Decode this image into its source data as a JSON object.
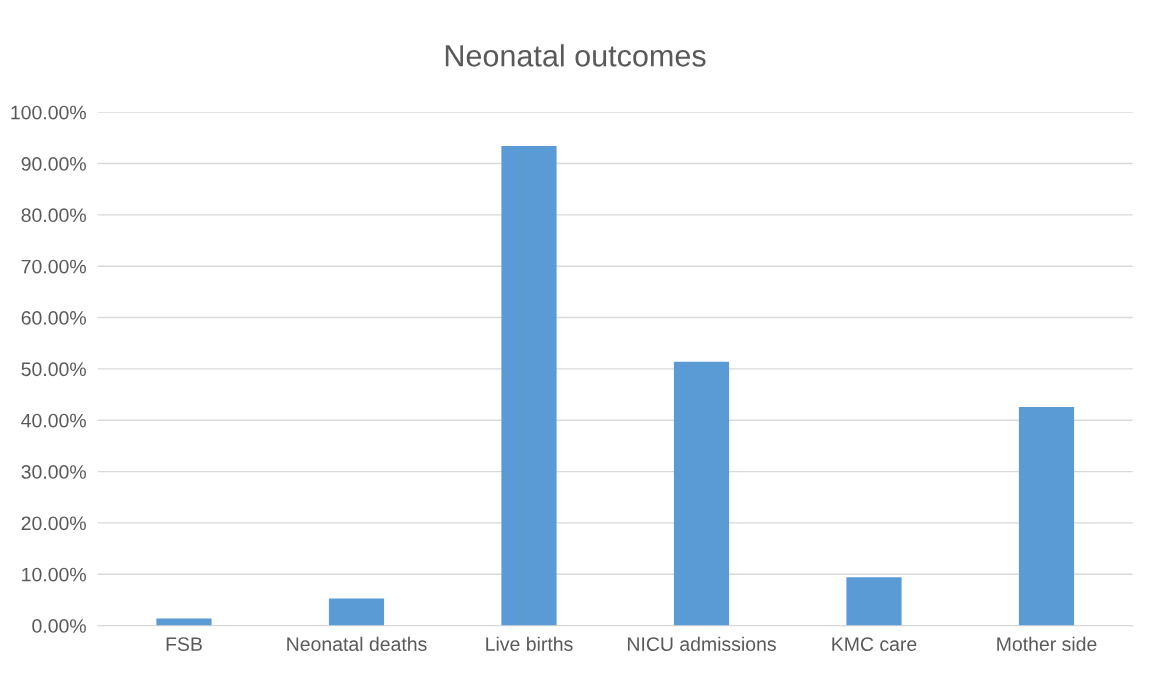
{
  "chart_data": {
    "type": "bar",
    "title": "Neonatal outcomes",
    "categories": [
      "FSB",
      "Neonatal deaths",
      "Live births",
      "NICU admissions",
      "KMC care",
      "Mother side"
    ],
    "values": [
      1.4,
      5.3,
      93.4,
      51.4,
      9.4,
      42.6
    ],
    "color": "#5b9bd5",
    "ylim": [
      0,
      100
    ],
    "yticks": [
      {
        "value": 0,
        "label": "0.00%"
      },
      {
        "value": 10,
        "label": "10.00%"
      },
      {
        "value": 20,
        "label": "20.00%"
      },
      {
        "value": 30,
        "label": "30.00%"
      },
      {
        "value": 40,
        "label": "40.00%"
      },
      {
        "value": 50,
        "label": "50.00%"
      },
      {
        "value": 60,
        "label": "60.00%"
      },
      {
        "value": 70,
        "label": "70.00%"
      },
      {
        "value": 80,
        "label": "80.00%"
      },
      {
        "value": 90,
        "label": "90.00%"
      },
      {
        "value": 100,
        "label": "100.00%"
      }
    ],
    "grid": "y"
  }
}
